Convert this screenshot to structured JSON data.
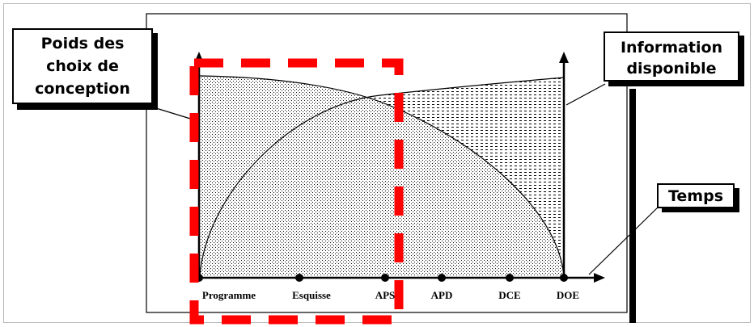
{
  "callouts": {
    "design_weight": [
      "Poids des",
      "choix de",
      "conception"
    ],
    "available_info": [
      "Information",
      "disponible"
    ],
    "time": "Temps"
  },
  "stages": [
    "Programme",
    "Esquisse",
    "APS",
    "APD",
    "DCE",
    "DOE"
  ],
  "colors": {
    "highlight": "#ff0000",
    "ink": "#000000",
    "frame": "#b9b9b9"
  }
}
